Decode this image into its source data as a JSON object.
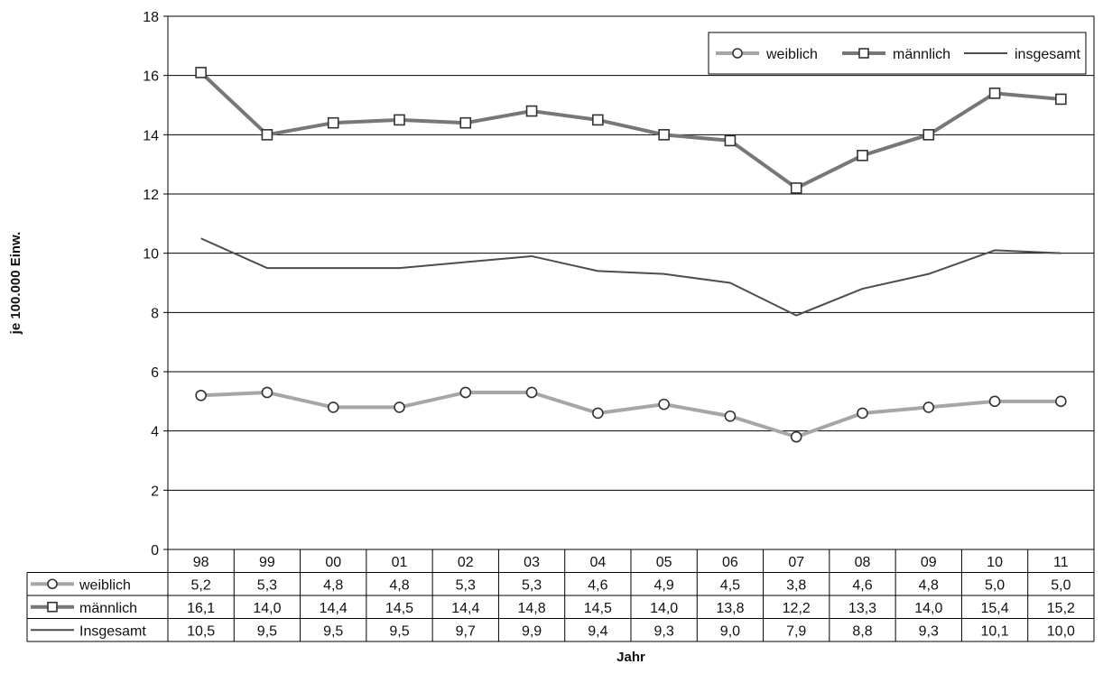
{
  "chart_data": {
    "type": "line",
    "x": [
      "98",
      "99",
      "00",
      "01",
      "02",
      "03",
      "04",
      "05",
      "06",
      "07",
      "08",
      "09",
      "10",
      "11"
    ],
    "ylabel": "je 100.000 Einw.",
    "xlabel": "Jahr",
    "ylim": [
      0,
      18
    ],
    "yticks": [
      "0",
      "2",
      "4",
      "6",
      "8",
      "10",
      "12",
      "14",
      "16",
      "18"
    ],
    "grid": true,
    "legend": "top-right",
    "series": [
      {
        "name": "weiblich",
        "marker": "circle",
        "color": "#a6a6a6",
        "values": [
          5.2,
          5.3,
          4.8,
          4.8,
          5.3,
          5.3,
          4.6,
          4.9,
          4.5,
          3.8,
          4.6,
          4.8,
          5.0,
          5.0
        ],
        "labels": [
          "5,2",
          "5,3",
          "4,8",
          "4,8",
          "5,3",
          "5,3",
          "4,6",
          "4,9",
          "4,5",
          "3,8",
          "4,6",
          "4,8",
          "5,0",
          "5,0"
        ]
      },
      {
        "name": "männlich",
        "marker": "square",
        "color": "#777777",
        "values": [
          16.1,
          14.0,
          14.4,
          14.5,
          14.4,
          14.8,
          14.5,
          14.0,
          13.8,
          12.2,
          13.3,
          14.0,
          15.4,
          15.2
        ],
        "labels": [
          "16,1",
          "14,0",
          "14,4",
          "14,5",
          "14,4",
          "14,8",
          "14,5",
          "14,0",
          "13,8",
          "12,2",
          "13,3",
          "14,0",
          "15,4",
          "15,2"
        ]
      },
      {
        "name": "Insgesamt",
        "legend_name": "insgesamt",
        "marker": "none",
        "color": "#4d4d4d",
        "values": [
          10.5,
          9.5,
          9.5,
          9.5,
          9.7,
          9.9,
          9.4,
          9.3,
          9.0,
          7.9,
          8.8,
          9.3,
          10.1,
          10.0
        ],
        "labels": [
          "10,5",
          "9,5",
          "9,5",
          "9,5",
          "9,7",
          "9,9",
          "9,4",
          "9,3",
          "9,0",
          "7,9",
          "8,8",
          "9,3",
          "10,1",
          "10,0"
        ]
      }
    ]
  }
}
